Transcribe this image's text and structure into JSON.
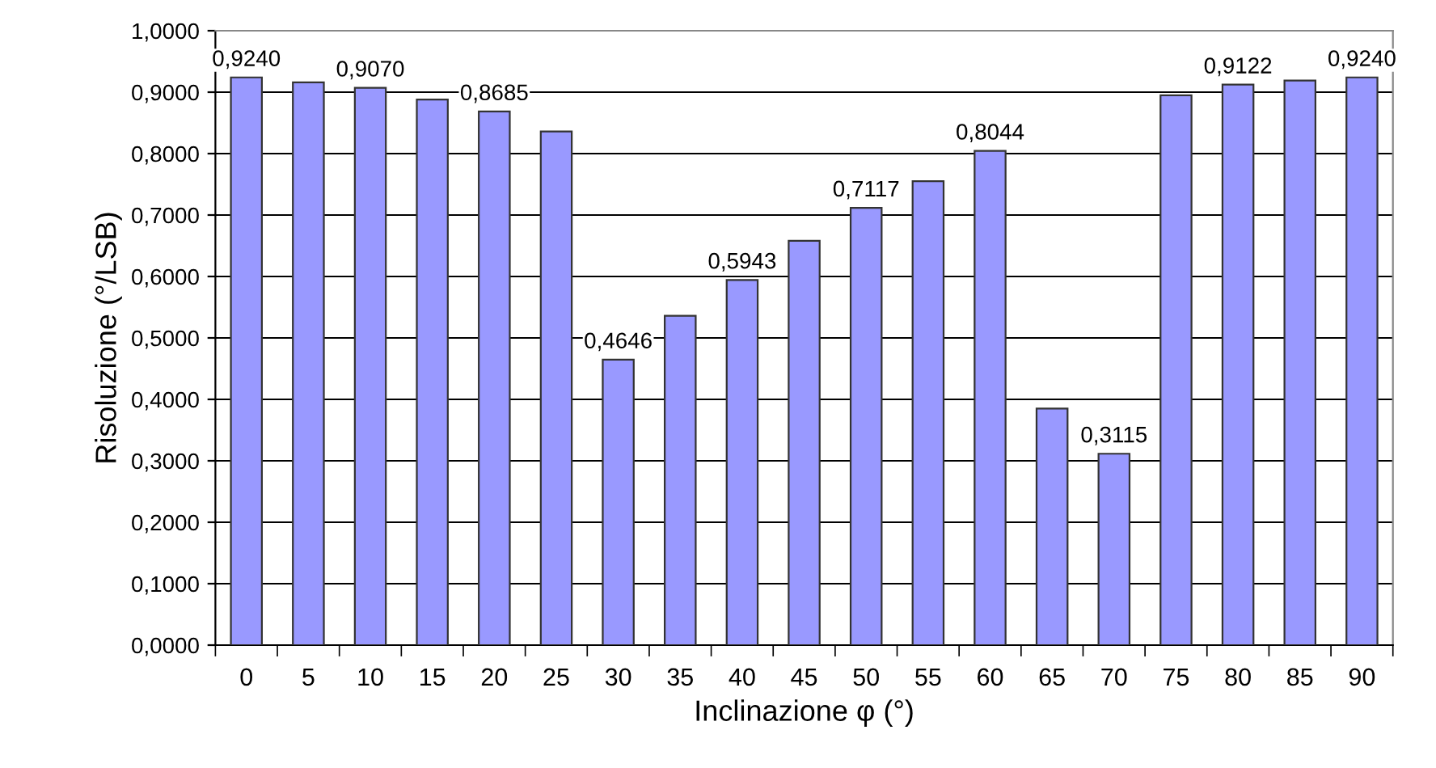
{
  "chart_data": {
    "type": "bar",
    "xlabel": "Inclinazione φ (°)",
    "ylabel": "Risoluzione (°/LSB)",
    "categories": [
      "0",
      "5",
      "10",
      "15",
      "20",
      "25",
      "30",
      "35",
      "40",
      "45",
      "50",
      "55",
      "60",
      "65",
      "70",
      "75",
      "80",
      "85",
      "90"
    ],
    "values": [
      0.924,
      0.916,
      0.907,
      0.888,
      0.8685,
      0.836,
      0.4646,
      0.536,
      0.5943,
      0.658,
      0.7117,
      0.755,
      0.8044,
      0.385,
      0.3115,
      0.895,
      0.9122,
      0.919,
      0.924
    ],
    "value_labels": [
      "0,9240",
      null,
      "0,9070",
      null,
      "0,8685",
      null,
      "0,4646",
      null,
      "0,5943",
      null,
      "0,7117",
      null,
      "0,8044",
      null,
      "0,3115",
      null,
      "0,9122",
      null,
      "0,9240"
    ],
    "color": "#9999ff",
    "ylim": [
      0,
      1
    ],
    "yticks": [
      {
        "value": 0,
        "label": "0,0000"
      },
      {
        "value": 0.1,
        "label": "0,1000"
      },
      {
        "value": 0.2,
        "label": "0,2000"
      },
      {
        "value": 0.3,
        "label": "0,3000"
      },
      {
        "value": 0.4,
        "label": "0,4000"
      },
      {
        "value": 0.5,
        "label": "0,5000"
      },
      {
        "value": 0.6,
        "label": "0,6000"
      },
      {
        "value": 0.7,
        "label": "0,7000"
      },
      {
        "value": 0.8,
        "label": "0,8000"
      },
      {
        "value": 0.9,
        "label": "0,9000"
      },
      {
        "value": 1,
        "label": "1,0000"
      }
    ],
    "grid": "y",
    "legend": false
  }
}
